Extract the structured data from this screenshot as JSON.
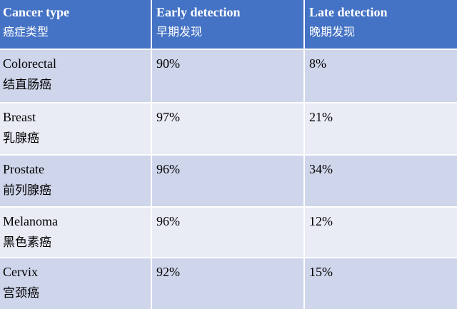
{
  "header": {
    "col1": {
      "en": "Cancer type",
      "zh": "癌症类型"
    },
    "col2": {
      "en": "Early detection",
      "zh": "早期发现"
    },
    "col3": {
      "en": "Late detection",
      "zh": "晚期发现"
    }
  },
  "rows": [
    {
      "type_en": "Colorectal",
      "type_zh": "结直肠癌",
      "early": "90%",
      "late": "8%"
    },
    {
      "type_en": "Breast",
      "type_zh": "乳腺癌",
      "early": "97%",
      "late": "21%"
    },
    {
      "type_en": "Prostate",
      "type_zh": "前列腺癌",
      "early": "96%",
      "late": "34%"
    },
    {
      "type_en": "Melanoma",
      "type_zh": "黑色素癌",
      "early": "96%",
      "late": "12%"
    },
    {
      "type_en": "Cervix",
      "type_zh": "宫颈癌",
      "early": "92%",
      "late": "15%"
    }
  ],
  "colors": {
    "header": "#4472c4",
    "row_odd": "#cfd5ea",
    "row_even": "#e9ebf5"
  }
}
